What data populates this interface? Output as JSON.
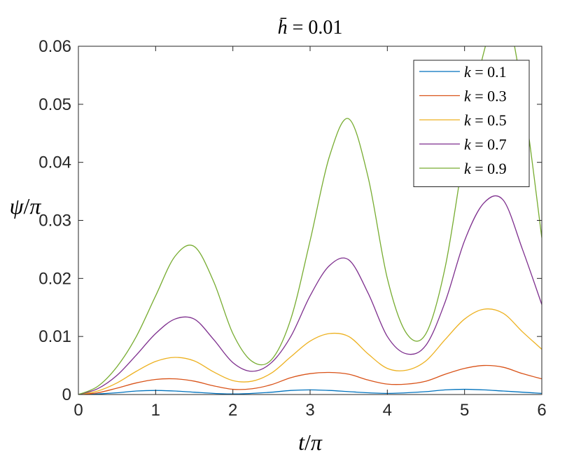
{
  "chart_data": {
    "type": "line",
    "title": "h̄ = 0.01",
    "xlabel": "t/π",
    "ylabel": "ψ/π",
    "xlim": [
      0,
      6
    ],
    "ylim": [
      0,
      0.06
    ],
    "xticks": [
      0,
      1,
      2,
      3,
      4,
      5,
      6
    ],
    "xtick_labels": [
      "0",
      "1",
      "2",
      "3",
      "4",
      "5",
      "6"
    ],
    "yticks": [
      0,
      0.01,
      0.02,
      0.03,
      0.04,
      0.05,
      0.06
    ],
    "ytick_labels": [
      "0",
      "0.01",
      "0.02",
      "0.03",
      "0.04",
      "0.05",
      "0.06"
    ],
    "grid": false,
    "legend_position": "top-right",
    "series": [
      {
        "name": "k = 0.1",
        "color": "#0072BD",
        "x": [
          0,
          0.25,
          0.5,
          0.75,
          1.0,
          1.25,
          1.5,
          1.75,
          2.0,
          2.25,
          2.5,
          2.75,
          3.0,
          3.25,
          3.5,
          3.75,
          4.0,
          4.25,
          4.5,
          4.75,
          5.0,
          5.25,
          5.5,
          5.75,
          6.0
        ],
        "y": [
          0,
          0.0001,
          0.0003,
          0.0006,
          0.0007,
          0.0006,
          0.0004,
          0.0002,
          0.0001,
          0.0002,
          0.0004,
          0.0007,
          0.0008,
          0.0007,
          0.0005,
          0.0003,
          0.0002,
          0.0003,
          0.0005,
          0.0008,
          0.0009,
          0.0008,
          0.0006,
          0.0004,
          0.0002
        ]
      },
      {
        "name": "k = 0.3",
        "color": "#D95319",
        "x": [
          0,
          0.25,
          0.5,
          0.75,
          1.0,
          1.25,
          1.5,
          1.75,
          2.0,
          2.25,
          2.5,
          2.75,
          3.0,
          3.25,
          3.5,
          3.75,
          4.0,
          4.25,
          4.5,
          4.75,
          5.0,
          5.25,
          5.5,
          5.75,
          6.0
        ],
        "y": [
          0,
          0.0003,
          0.0011,
          0.002,
          0.0026,
          0.0027,
          0.0023,
          0.0015,
          0.0009,
          0.001,
          0.0017,
          0.0029,
          0.0036,
          0.0038,
          0.0035,
          0.0025,
          0.0018,
          0.0018,
          0.0023,
          0.0035,
          0.0045,
          0.005,
          0.0047,
          0.0036,
          0.0027
        ]
      },
      {
        "name": "k = 0.5",
        "color": "#EDB120",
        "x": [
          0,
          0.25,
          0.5,
          0.75,
          1.0,
          1.25,
          1.5,
          1.75,
          2.0,
          2.25,
          2.5,
          2.75,
          3.0,
          3.25,
          3.5,
          3.75,
          4.0,
          4.25,
          4.5,
          4.75,
          5.0,
          5.25,
          5.5,
          5.75,
          6.0
        ],
        "y": [
          0,
          0.0006,
          0.002,
          0.004,
          0.0057,
          0.0064,
          0.0058,
          0.0039,
          0.0024,
          0.0023,
          0.0037,
          0.0065,
          0.0092,
          0.0105,
          0.01,
          0.007,
          0.0045,
          0.0042,
          0.0058,
          0.0095,
          0.013,
          0.0147,
          0.014,
          0.0108,
          0.0078
        ]
      },
      {
        "name": "k = 0.7",
        "color": "#7E2F8E",
        "x": [
          0,
          0.25,
          0.5,
          0.75,
          1.0,
          1.25,
          1.5,
          1.75,
          2.0,
          2.25,
          2.5,
          2.75,
          3.0,
          3.25,
          3.5,
          3.75,
          4.0,
          4.25,
          4.5,
          4.75,
          5.0,
          5.25,
          5.5,
          5.75,
          6.0
        ],
        "y": [
          0,
          0.001,
          0.0033,
          0.0068,
          0.0105,
          0.013,
          0.013,
          0.0095,
          0.0055,
          0.004,
          0.0055,
          0.01,
          0.017,
          0.0222,
          0.0232,
          0.0175,
          0.01,
          0.007,
          0.0085,
          0.016,
          0.0265,
          0.033,
          0.0335,
          0.025,
          0.0155
        ]
      },
      {
        "name": "k = 0.9",
        "color": "#77AC30",
        "x": [
          0,
          0.25,
          0.5,
          0.75,
          1.0,
          1.25,
          1.5,
          1.75,
          2.0,
          2.25,
          2.5,
          2.75,
          3.0,
          3.25,
          3.5,
          3.75,
          4.0,
          4.25,
          4.5,
          4.75,
          5.0,
          5.25,
          5.5,
          5.75,
          6.0
        ],
        "y": [
          0,
          0.0014,
          0.0048,
          0.01,
          0.017,
          0.0238,
          0.0255,
          0.0195,
          0.0105,
          0.0057,
          0.006,
          0.013,
          0.0265,
          0.041,
          0.0475,
          0.0375,
          0.02,
          0.0105,
          0.0105,
          0.022,
          0.042,
          0.059,
          0.067,
          0.052,
          0.027
        ]
      }
    ]
  }
}
